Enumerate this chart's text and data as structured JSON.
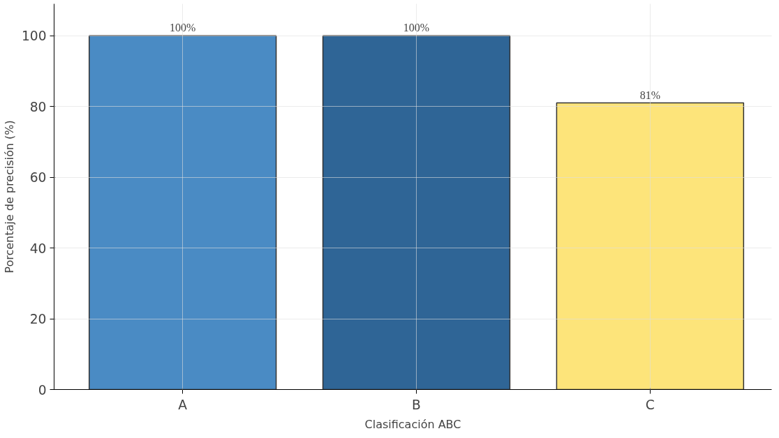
{
  "chart_data": {
    "type": "bar",
    "xlabel": "Clasificación ABC",
    "ylabel": "Porcentaje de precisión (%)",
    "categories": [
      "A",
      "B",
      "C"
    ],
    "values": [
      100,
      100,
      81
    ],
    "colors": [
      "#4a8bc4",
      "#2f6596",
      "#fde47a"
    ],
    "value_labels": [
      "100%",
      "100%",
      "81%"
    ],
    "ylim": [
      0,
      109
    ],
    "yticks": [
      0,
      20,
      40,
      60,
      80,
      100
    ],
    "grid": true
  }
}
